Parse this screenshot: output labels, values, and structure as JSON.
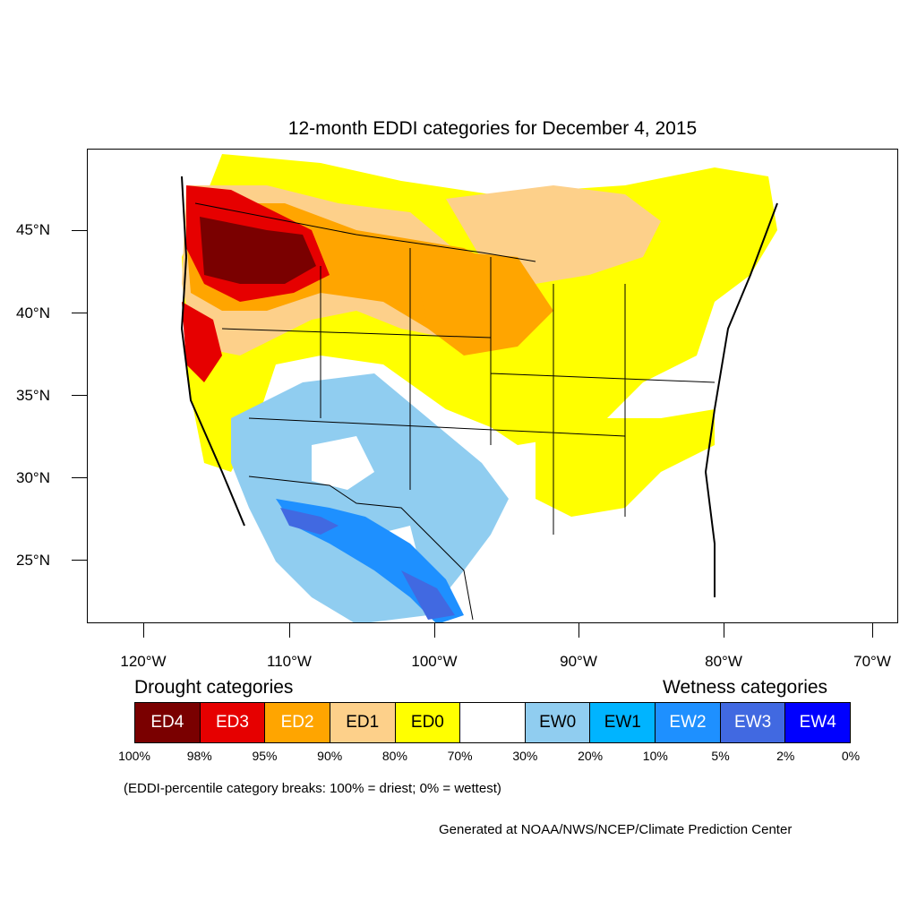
{
  "title": "12-month EDDI categories for December 4, 2015",
  "map": {
    "lat_labels": [
      "45°N",
      "40°N",
      "35°N",
      "30°N",
      "25°N"
    ],
    "lon_labels": [
      "120°W",
      "110°W",
      "100°W",
      "90°W",
      "80°W",
      "70°W"
    ],
    "colors": {
      "ED4": "#7a0000",
      "ED3": "#e60000",
      "ED2": "#ffa500",
      "ED1": "#fdd08a",
      "ED0": "#ffff00",
      "normal": "#ffffff",
      "EW0": "#90cdf0",
      "EW1": "#00b4ff",
      "EW2": "#1e90ff",
      "EW3": "#4169e1",
      "EW4": "#0000ff"
    }
  },
  "legend": {
    "drought_title": "Drought categories",
    "wetness_title": "Wetness categories",
    "categories": [
      {
        "label": "ED4",
        "color": "#7a0000",
        "text_color": "#ffffff"
      },
      {
        "label": "ED3",
        "color": "#e60000",
        "text_color": "#ffffff"
      },
      {
        "label": "ED2",
        "color": "#ffa500",
        "text_color": "#ffffff"
      },
      {
        "label": "ED1",
        "color": "#fdd08a",
        "text_color": "#000000"
      },
      {
        "label": "ED0",
        "color": "#ffff00",
        "text_color": "#000000"
      },
      {
        "label": "",
        "color": "#ffffff",
        "text_color": "#000000"
      },
      {
        "label": "EW0",
        "color": "#90cdf0",
        "text_color": "#000000"
      },
      {
        "label": "EW1",
        "color": "#00b4ff",
        "text_color": "#000000"
      },
      {
        "label": "EW2",
        "color": "#1e90ff",
        "text_color": "#ffffff"
      },
      {
        "label": "EW3",
        "color": "#4169e1",
        "text_color": "#ffffff"
      },
      {
        "label": "EW4",
        "color": "#0000ff",
        "text_color": "#ffffff"
      }
    ],
    "percentiles": [
      "100%",
      "98%",
      "95%",
      "90%",
      "80%",
      "70%",
      "30%",
      "20%",
      "10%",
      "5%",
      "2%",
      "0%"
    ]
  },
  "note": "(EDDI-percentile category breaks: 100% = driest; 0% = wettest)",
  "credit": "Generated at NOAA/NWS/NCEP/Climate Prediction Center"
}
